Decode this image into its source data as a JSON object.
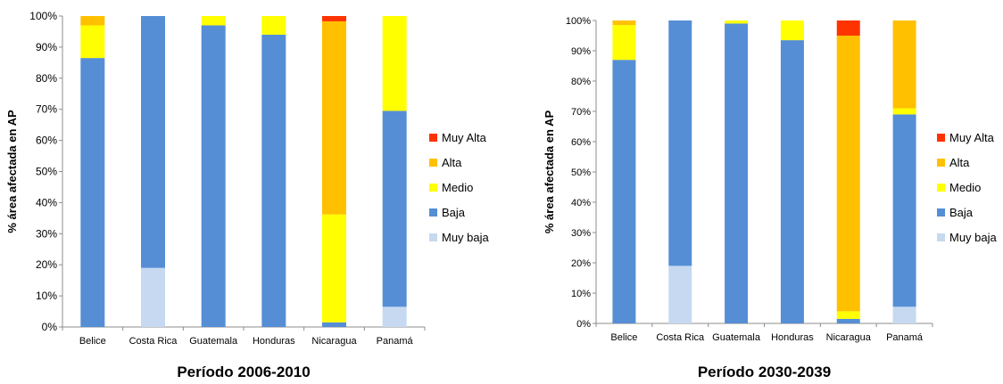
{
  "chart_data": [
    {
      "type": "bar",
      "stacked": true,
      "title": "Período 2006-2010",
      "ylabel": "% área afectada en AP",
      "ylim": [
        0,
        100
      ],
      "ytick_step": 10,
      "ytick_suffix": "%",
      "grid": false,
      "legend_position": "right",
      "categories": [
        "Belice",
        "Costa Rica",
        "Guatemala",
        "Honduras",
        "Nicaragua",
        "Panamá"
      ],
      "series": [
        {
          "name": "Muy baja",
          "color": "#c6d9f1",
          "values": [
            0,
            19,
            0,
            0,
            0,
            6.5
          ]
        },
        {
          "name": "Baja",
          "color": "#558ed5",
          "values": [
            86.5,
            81,
            97,
            94,
            1.5,
            63
          ]
        },
        {
          "name": "Medio",
          "color": "#ffff00",
          "values": [
            10.5,
            0,
            3,
            6,
            34.7,
            30.5
          ]
        },
        {
          "name": "Alta",
          "color": "#ffc000",
          "values": [
            3,
            0,
            0,
            0,
            62.1,
            0
          ]
        },
        {
          "name": "Muy Alta",
          "color": "#ff3300",
          "values": [
            0,
            0,
            0,
            0,
            1.7,
            0
          ]
        }
      ]
    },
    {
      "type": "bar",
      "stacked": true,
      "title": "Período 2030-2039",
      "ylabel": "% área afectada en AP",
      "ylim": [
        0,
        100
      ],
      "ytick_step": 10,
      "ytick_suffix": "%",
      "grid": false,
      "legend_position": "right",
      "categories": [
        "Belice",
        "Costa Rica",
        "Guatemala",
        "Honduras",
        "Nicaragua",
        "Panamá"
      ],
      "series": [
        {
          "name": "Muy baja",
          "color": "#c6d9f1",
          "values": [
            0,
            19,
            0,
            0,
            0,
            5.5
          ]
        },
        {
          "name": "Baja",
          "color": "#558ed5",
          "values": [
            87,
            81,
            99,
            93.5,
            1.5,
            63.5
          ]
        },
        {
          "name": "Medio",
          "color": "#ffff00",
          "values": [
            11.5,
            0,
            1,
            6.5,
            2.5,
            2
          ]
        },
        {
          "name": "Alta",
          "color": "#ffc000",
          "values": [
            1.5,
            0,
            0,
            0,
            91,
            29
          ]
        },
        {
          "name": "Muy Alta",
          "color": "#ff3300",
          "values": [
            0,
            0,
            0,
            0,
            5,
            0
          ]
        }
      ]
    }
  ]
}
